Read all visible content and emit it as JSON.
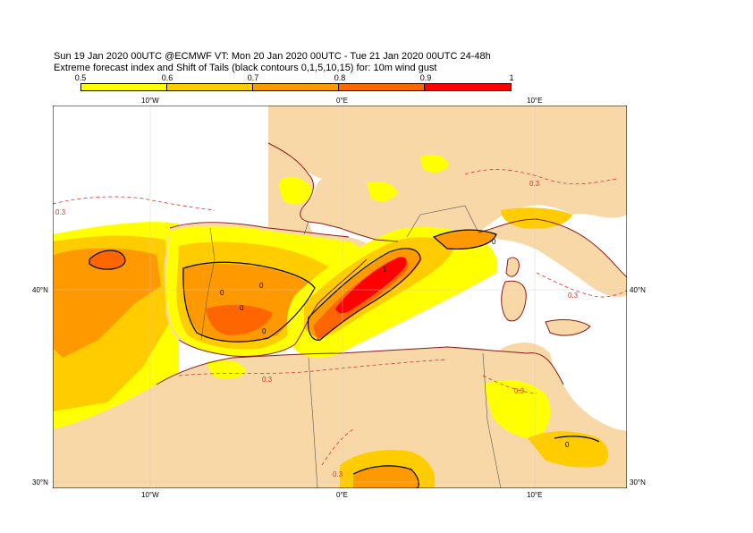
{
  "header": {
    "line1": "Sun 19 Jan 2020 00UTC @ECMWF VT: Mon 20 Jan 2020 00UTC - Tue 21 Jan 2020 00UTC  24-48h",
    "line2": "Extreme forecast index and Shift of Tails (black contours 0,1,5,10,15) for: 10m wind gust"
  },
  "colorbar": {
    "labels": [
      "0.5",
      "0.6",
      "0.7",
      "0.8",
      "0.9",
      "1"
    ],
    "colors": [
      "#ffff00",
      "#ffcc00",
      "#ff9900",
      "#ff6600",
      "#ff0000"
    ]
  },
  "axes": {
    "top": [
      "10°W",
      "0°E",
      "10°E"
    ],
    "bottom": [
      "10°W",
      "0°E",
      "10°E"
    ],
    "left": [
      "40°N",
      "30°N"
    ],
    "right": [
      "40°N",
      "30°N"
    ]
  },
  "map_labels": {
    "efi_contour": "0.3",
    "sot_zero": "0",
    "sot_one": "1"
  },
  "colors": {
    "land": "#f9d8a8",
    "sea": "#ffffff",
    "efi_05": "#ffff00",
    "efi_06": "#ffcc00",
    "efi_07": "#ff9900",
    "efi_08": "#ff6600",
    "efi_09": "#ff0000",
    "coast": "#8b1a1a",
    "dashed_contour": "#d9342b"
  }
}
